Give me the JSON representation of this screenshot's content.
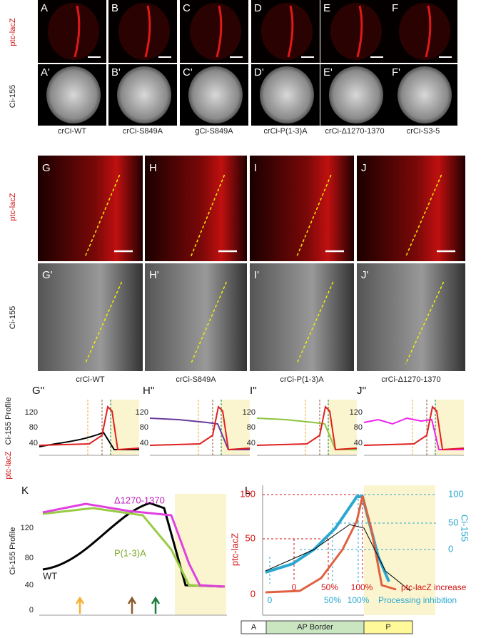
{
  "top": {
    "row_red": "ptc-lacZ",
    "row_gray": "Ci-155",
    "letters": [
      "A",
      "B",
      "C",
      "D",
      "E",
      "F"
    ],
    "letters_prime": [
      "A'",
      "B'",
      "C'",
      "D'",
      "E'",
      "F'"
    ],
    "constructs": [
      "crCi-WT",
      "crCi-S849A",
      "gCi-S849A",
      "crCi-P(1-3)A",
      "crCi-Δ1270-1370",
      "crCi-S3-5"
    ]
  },
  "middle": {
    "row_red": "ptc-lacZ",
    "row_gray": "Ci-155",
    "letters": [
      "G",
      "H",
      "I",
      "J"
    ],
    "letters_prime": [
      "G'",
      "H'",
      "I'",
      "J'"
    ],
    "constructs": [
      "crCi-WT",
      "crCi-S849A",
      "crCi-P(1-3)A",
      "crCi-Δ1270-1370"
    ]
  },
  "profiles": {
    "y_label_red": "ptc-lacZ",
    "y_label_black": "Ci-155 Profile",
    "letters": [
      "G''",
      "H''",
      "I''",
      "J''"
    ],
    "yticks": [
      "120",
      "80",
      "40"
    ]
  },
  "panel_k": {
    "letter": "K",
    "y_label": "Ci-155 Profile",
    "yticks": [
      "120",
      "80",
      "40",
      "0"
    ],
    "curve_labels": [
      "Δ1270-1370",
      "WT",
      "P(1-3)A"
    ]
  },
  "panel_l": {
    "letter": "L",
    "y_label_left": "ptc-lacZ",
    "y_label_right": "Ci-155",
    "yticks_left": [
      "100",
      "50",
      "0"
    ],
    "yticks_right": [
      "100",
      "50",
      "0"
    ],
    "ptc_marks": [
      "0",
      "50%",
      "100%"
    ],
    "ptc_caption": "ptc-lacZ increase",
    "proc_marks": [
      "0",
      "50%",
      "100%"
    ],
    "proc_caption": "Processing inhibition"
  },
  "bar": [
    "A",
    "AP Border",
    "P"
  ]
}
